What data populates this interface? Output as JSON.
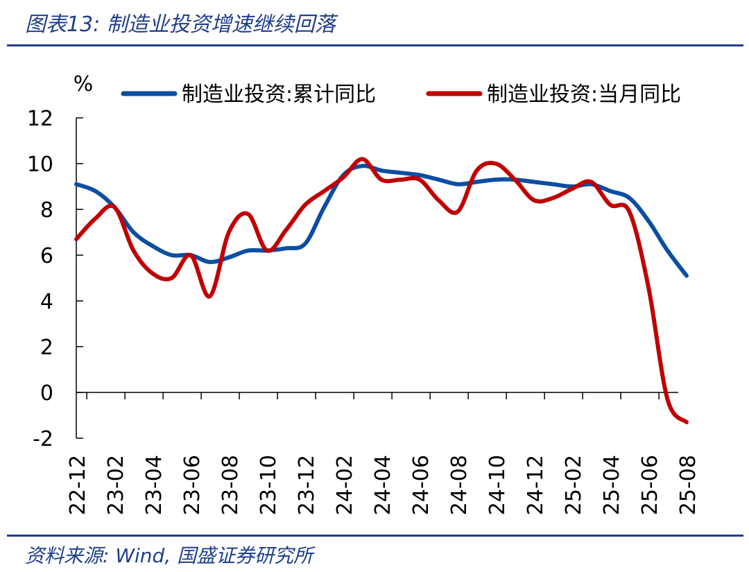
{
  "header": {
    "title": "图表13:  制造业投资增速继续回落"
  },
  "footer": {
    "source": "资料来源:  Wind, 国盛证券研究所"
  },
  "chart_data": {
    "type": "line",
    "ylabel": "%",
    "ylim": [
      -2,
      12
    ],
    "yticks": [
      -2,
      0,
      2,
      4,
      6,
      8,
      10,
      12
    ],
    "legend_position": "top",
    "x": [
      "22-12",
      "23-01",
      "23-02",
      "23-03",
      "23-04",
      "23-05",
      "23-06",
      "23-07",
      "23-08",
      "23-09",
      "23-10",
      "23-11",
      "23-12",
      "24-01",
      "24-02",
      "24-03",
      "24-04",
      "24-05",
      "24-06",
      "24-07",
      "24-08",
      "24-09",
      "24-10",
      "24-11",
      "24-12",
      "25-01",
      "25-02",
      "25-03",
      "25-04",
      "25-05",
      "25-06",
      "25-07",
      "25-08"
    ],
    "xtick_labels": [
      "22-12",
      "23-02",
      "23-04",
      "23-06",
      "23-08",
      "23-10",
      "23-12",
      "24-02",
      "24-04",
      "24-06",
      "24-08",
      "24-10",
      "24-12",
      "25-02",
      "25-04",
      "25-06",
      "25-08"
    ],
    "series": [
      {
        "name": "制造业投资:累计同比",
        "color": "#0B4EA2",
        "values": [
          9.1,
          8.8,
          8.1,
          7.0,
          6.4,
          6.0,
          6.0,
          5.7,
          5.9,
          6.2,
          6.2,
          6.3,
          6.5,
          8.1,
          9.5,
          9.9,
          9.7,
          9.6,
          9.5,
          9.3,
          9.1,
          9.2,
          9.3,
          9.3,
          9.2,
          9.1,
          9.0,
          9.1,
          8.8,
          8.5,
          7.5,
          6.2,
          5.1
        ]
      },
      {
        "name": "制造业投资:当月同比",
        "color": "#C00000",
        "values": [
          6.7,
          7.6,
          8.1,
          6.2,
          5.2,
          5.0,
          6.0,
          4.2,
          7.0,
          7.8,
          6.2,
          7.1,
          8.2,
          8.8,
          9.4,
          10.2,
          9.3,
          9.3,
          9.3,
          8.4,
          7.9,
          9.7,
          10.0,
          9.3,
          8.4,
          8.5,
          8.9,
          9.2,
          8.2,
          7.9,
          4.6,
          -0.3,
          -1.3
        ]
      }
    ]
  }
}
